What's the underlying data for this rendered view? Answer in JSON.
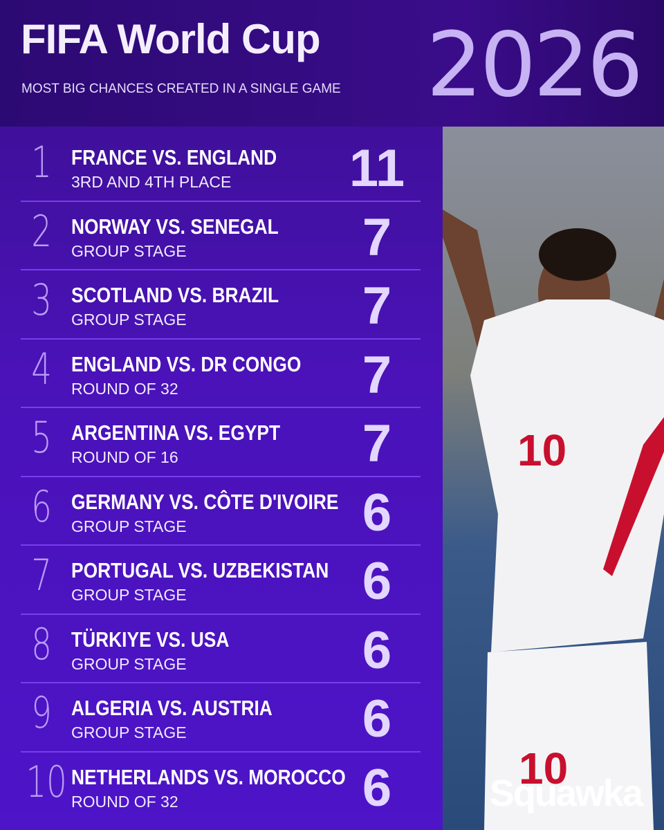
{
  "header": {
    "title": "FIFA World Cup",
    "subtitle": "MOST BIG CHANCES CREATED IN A SINGLE GAME",
    "year": "2026"
  },
  "table": {
    "rows": [
      {
        "rank": "1",
        "match": "FRANCE VS. ENGLAND",
        "stage": "3RD AND 4TH PLACE",
        "value": "11"
      },
      {
        "rank": "2",
        "match": "NORWAY VS. SENEGAL",
        "stage": "GROUP STAGE",
        "value": "7"
      },
      {
        "rank": "3",
        "match": "SCOTLAND VS. BRAZIL",
        "stage": "GROUP STAGE",
        "value": "7"
      },
      {
        "rank": "4",
        "match": "ENGLAND VS. DR CONGO",
        "stage": "ROUND OF 32",
        "value": "7"
      },
      {
        "rank": "5",
        "match": "ARGENTINA VS. EGYPT",
        "stage": "ROUND OF 16",
        "value": "7"
      },
      {
        "rank": "6",
        "match": "GERMANY VS. CÔTE D'IVOIRE",
        "stage": "GROUP STAGE",
        "value": "6"
      },
      {
        "rank": "7",
        "match": "PORTUGAL VS. UZBEKISTAN",
        "stage": "GROUP STAGE",
        "value": "6"
      },
      {
        "rank": "8",
        "match": "TÜRKIYE VS. USA",
        "stage": "GROUP STAGE",
        "value": "6"
      },
      {
        "rank": "9",
        "match": "ALGERIA VS. AUSTRIA",
        "stage": "GROUP STAGE",
        "value": "6"
      },
      {
        "rank": "10",
        "match": "NETHERLANDS VS. MOROCCO",
        "stage": "ROUND OF 32",
        "value": "6"
      }
    ]
  },
  "brand": "Squawka"
}
